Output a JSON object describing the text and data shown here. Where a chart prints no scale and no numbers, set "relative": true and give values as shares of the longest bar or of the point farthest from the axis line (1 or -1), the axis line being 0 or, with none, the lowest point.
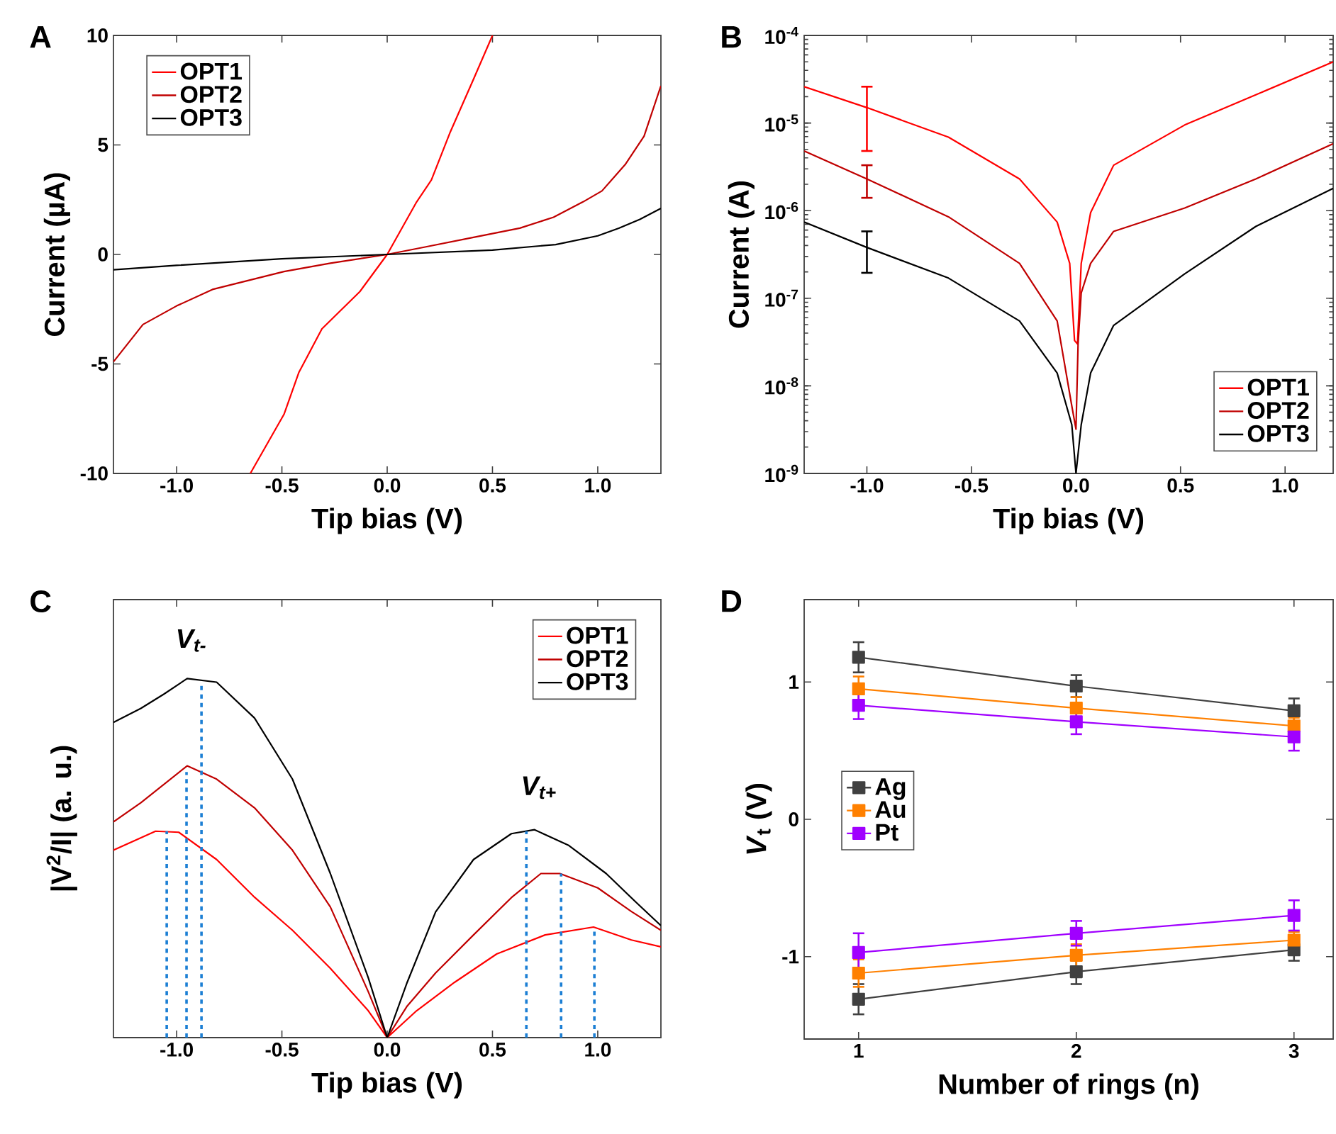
{
  "chart_data": [
    {
      "type": "line",
      "title": "A",
      "xlabel": "Tip bias (V)",
      "ylabel": "Current (µA)",
      "xlim": [
        -1.3,
        1.3
      ],
      "ylim": [
        -10,
        10
      ],
      "xticks": [
        {
          "value": -1,
          "label": "-1.0"
        },
        {
          "value": -0.5,
          "label": "-0.5"
        },
        {
          "value": 0,
          "label": "0.0"
        },
        {
          "value": 0.5,
          "label": "0.5"
        },
        {
          "value": 1,
          "label": "1.0"
        }
      ],
      "yticks": [
        -10,
        -5,
        0,
        5,
        10
      ],
      "legend": "top left",
      "series": [
        {
          "name": "OPT1",
          "color": "#ff0000",
          "x": [
            -0.65,
            -0.49,
            -0.42,
            -0.31,
            -0.13,
            0,
            0.14,
            0.21,
            0.3,
            0.41,
            0.5
          ],
          "values": [
            -10,
            -7.3,
            -5.4,
            -3.4,
            -1.7,
            0,
            2.4,
            3.4,
            5.6,
            8.0,
            10
          ]
        },
        {
          "name": "OPT2",
          "color": "#c00000",
          "x": [
            -1.3,
            -1.16,
            -1.0,
            -0.83,
            -0.49,
            -0.27,
            0,
            0.18,
            0.41,
            0.63,
            0.79,
            0.93,
            1.02,
            1.13,
            1.22,
            1.3
          ],
          "values": [
            -4.9,
            -3.2,
            -2.35,
            -1.6,
            -0.78,
            -0.4,
            0,
            0.34,
            0.78,
            1.2,
            1.7,
            2.4,
            2.9,
            4.1,
            5.4,
            7.7
          ]
        },
        {
          "name": "OPT3",
          "color": "#000000",
          "x": [
            -1.3,
            -1.0,
            -0.5,
            0,
            0.5,
            0.8,
            1.0,
            1.1,
            1.2,
            1.3
          ],
          "values": [
            -0.7,
            -0.5,
            -0.2,
            0,
            0.2,
            0.45,
            0.85,
            1.2,
            1.6,
            2.1
          ]
        }
      ]
    },
    {
      "type": "line",
      "title": "B",
      "xlabel": "Tip bias (V)",
      "ylabel": "Current (A)",
      "log": "y",
      "xlim": [
        -1.3,
        1.23
      ],
      "ylim": [
        1e-09,
        0.0001
      ],
      "xticks": [
        {
          "value": -1,
          "label": "-1.0"
        },
        {
          "value": -0.5,
          "label": "-0.5"
        },
        {
          "value": 0,
          "label": "0.0"
        },
        {
          "value": 0.5,
          "label": "0.5"
        },
        {
          "value": 1,
          "label": "1.0"
        }
      ],
      "yticks": [
        {
          "value": 1e-09,
          "label": "10$^{-9}$"
        },
        {
          "value": 1e-08,
          "label": "10$^{-8}$"
        },
        {
          "value": 1e-07,
          "label": "10$^{-7}$"
        },
        {
          "value": 1e-06,
          "label": "10$^{-6}$"
        },
        {
          "value": 1e-05,
          "label": "10$^{-5}$"
        },
        {
          "value": 0.0001,
          "label": "10$^{-4}$"
        }
      ],
      "legend": "bottom right",
      "series": [
        {
          "name": "OPT1",
          "color": "#ff0000",
          "x": [
            -1.3,
            -1.0,
            -0.61,
            -0.27,
            -0.09,
            -0.03,
            -0.007,
            0.007,
            0.025,
            0.07,
            0.18,
            0.52,
            0.86,
            1.23
          ],
          "values": [
            2.6e-05,
            1.5e-05,
            6.9e-06,
            2.3e-06,
            7.4e-07,
            2.5e-07,
            3.3e-08,
            3e-08,
            2.5e-07,
            9.5e-07,
            3.3e-06,
            9.5e-06,
            2.1e-05,
            5e-05
          ],
          "errors": [
            null,
            [
              4.8e-06,
              2.6e-05
            ],
            null,
            null,
            null,
            null,
            null,
            null,
            null,
            null,
            null,
            null,
            null,
            null
          ]
        },
        {
          "name": "OPT2",
          "color": "#c00000",
          "x": [
            -1.3,
            -1.0,
            -0.61,
            -0.27,
            -0.09,
            -0.02,
            0,
            0.01,
            0.025,
            0.07,
            0.18,
            0.52,
            0.86,
            1.23
          ],
          "values": [
            4.8e-06,
            2.3e-06,
            8.5e-07,
            2.5e-07,
            5.5e-08,
            5.9e-09,
            3.2e-09,
            3e-08,
            1.15e-07,
            2.5e-07,
            5.8e-07,
            1.07e-06,
            2.3e-06,
            5.8e-06
          ],
          "errors": [
            null,
            [
              1.4e-06,
              3.3e-06
            ],
            null,
            null,
            null,
            null,
            null,
            null,
            null,
            null,
            null,
            null,
            null,
            null
          ]
        },
        {
          "name": "OPT3",
          "color": "#000000",
          "x": [
            -1.3,
            -1.0,
            -0.61,
            -0.27,
            -0.09,
            -0.02,
            0,
            0.025,
            0.07,
            0.18,
            0.52,
            0.86,
            1.23
          ],
          "values": [
            7.4e-07,
            3.8e-07,
            1.7e-07,
            5.5e-08,
            1.4e-08,
            3.6e-09,
            1e-09,
            3.6e-09,
            1.4e-08,
            4.9e-08,
            1.9e-07,
            6.6e-07,
            1.8e-06
          ],
          "errors": [
            null,
            [
              1.95e-07,
              5.8e-07
            ],
            null,
            null,
            null,
            null,
            null,
            null,
            null,
            null,
            null,
            null,
            null
          ]
        }
      ]
    },
    {
      "type": "line",
      "title": "C",
      "xlabel": "Tip bias (V)",
      "ylabel": "|V$^{2}$/I| (a. u.)",
      "relative": true,
      "tick_labels": "x",
      "xlim": [
        -1.3,
        1.3
      ],
      "xticks": [
        {
          "value": -1,
          "label": "-1.0"
        },
        {
          "value": -0.5,
          "label": "-0.5"
        },
        {
          "value": 0,
          "label": "0.0"
        },
        {
          "value": 0.5,
          "label": "0.5"
        },
        {
          "value": 1,
          "label": "1.0"
        }
      ],
      "legend": "top right",
      "annotations": [
        "V$_{t-}$",
        "V$_{t+}$"
      ],
      "series": [
        {
          "name": "OPT1",
          "color": "#ff0000",
          "x": [
            -1.3,
            -1.1,
            -0.99,
            -0.81,
            -0.63,
            -0.45,
            -0.27,
            -0.09,
            0,
            0.14,
            0.32,
            0.52,
            0.75,
            0.98,
            1.16,
            1.3
          ],
          "values": [
            0.522,
            0.575,
            0.572,
            0.496,
            0.391,
            0.299,
            0.193,
            0.075,
            0,
            0.075,
            0.154,
            0.233,
            0.286,
            0.308,
            0.272,
            0.253
          ]
        },
        {
          "name": "OPT2",
          "color": "#c00000",
          "x": [
            -1.3,
            -1.17,
            -0.95,
            -0.81,
            -0.63,
            -0.45,
            -0.27,
            -0.09,
            0,
            0.095,
            0.23,
            0.41,
            0.59,
            0.73,
            0.82,
            1.0,
            1.16,
            1.3
          ],
          "values": [
            0.601,
            0.654,
            0.757,
            0.72,
            0.64,
            0.522,
            0.364,
            0.128,
            0,
            0.088,
            0.18,
            0.286,
            0.39,
            0.457,
            0.457,
            0.417,
            0.351,
            0.299
          ]
        },
        {
          "name": "OPT3",
          "color": "#000000",
          "x": [
            -1.3,
            -1.17,
            -1.06,
            -0.95,
            -0.81,
            -0.63,
            -0.45,
            -0.27,
            -0.09,
            0,
            0.095,
            0.23,
            0.41,
            0.59,
            0.7,
            0.86,
            1.04,
            1.18,
            1.3
          ],
          "values": [
            0.878,
            0.917,
            0.957,
            1.0,
            0.99,
            0.89,
            0.72,
            0.457,
            0.167,
            0,
            0.154,
            0.35,
            0.496,
            0.568,
            0.579,
            0.536,
            0.457,
            0.378,
            0.312
          ]
        },
        {
          "color": "#1c7fd4",
          "line_style": "dashed",
          "x": [
            -1.047,
            -1.047
          ],
          "values": [
            0,
            0.575
          ]
        },
        {
          "color": "#1c7fd4",
          "line_style": "dashed",
          "x": [
            -0.953,
            -0.953
          ],
          "values": [
            0,
            0.74
          ]
        },
        {
          "color": "#1c7fd4",
          "line_style": "dashed",
          "x": [
            -0.882,
            -0.882
          ],
          "values": [
            0,
            0.99
          ]
        },
        {
          "color": "#1c7fd4",
          "line_style": "dashed",
          "x": [
            0.661,
            0.661
          ],
          "values": [
            0,
            0.575
          ]
        },
        {
          "color": "#1c7fd4",
          "line_style": "dashed",
          "x": [
            0.826,
            0.826
          ],
          "values": [
            0,
            0.457
          ]
        },
        {
          "color": "#1c7fd4",
          "line_style": "dashed",
          "x": [
            0.984,
            0.984
          ],
          "values": [
            0,
            0.305
          ]
        }
      ]
    },
    {
      "type": "line",
      "title": "D",
      "xlabel": "Number of rings (n)",
      "ylabel": "*V*$_{t}$ (V)",
      "xlim": [
        0.75,
        3.18
      ],
      "ylim": [
        -1.6,
        1.6
      ],
      "xticks": [
        1,
        2,
        3
      ],
      "yticks": [
        -1,
        0,
        1
      ],
      "legend": "left",
      "marker": "square",
      "series": [
        {
          "name": "Ag",
          "color": "#404040",
          "x": [
            1,
            2,
            3
          ],
          "values": [
            1.18,
            0.97,
            0.79
          ],
          "errors": [
            0.11,
            0.08,
            0.09
          ]
        },
        {
          "name": "Au",
          "color": "#ff8000",
          "x": [
            1,
            2,
            3
          ],
          "values": [
            0.95,
            0.81,
            0.68
          ],
          "errors": [
            0.09,
            0.08,
            0.06
          ]
        },
        {
          "name": "Pt",
          "color": "#a000ff",
          "x": [
            1,
            2,
            3
          ],
          "values": [
            0.83,
            0.71,
            0.6
          ],
          "errors": [
            0.1,
            0.09,
            0.1
          ]
        },
        {
          "color": "#404040",
          "x": [
            1,
            2,
            3
          ],
          "values": [
            -1.31,
            -1.11,
            -0.95
          ],
          "errors": [
            0.11,
            0.09,
            0.08
          ]
        },
        {
          "color": "#ff8000",
          "x": [
            1,
            2,
            3
          ],
          "values": [
            -1.12,
            -0.99,
            -0.88
          ],
          "errors": [
            0.1,
            0.08,
            0.06
          ]
        },
        {
          "color": "#a000ff",
          "x": [
            1,
            2,
            3
          ],
          "values": [
            -0.97,
            -0.83,
            -0.7
          ],
          "errors": [
            0.14,
            0.09,
            0.11
          ]
        }
      ]
    }
  ]
}
